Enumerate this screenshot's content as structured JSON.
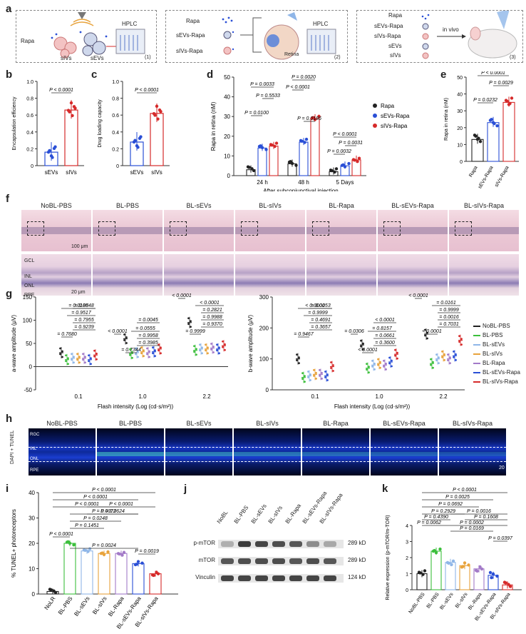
{
  "panels": {
    "a": "a",
    "b": "b",
    "c": "c",
    "d": "d",
    "e": "e",
    "f": "f",
    "g": "g",
    "h": "h",
    "i": "i",
    "j": "j",
    "k": "k"
  },
  "a": {
    "box1": {
      "rapa": "Rapa",
      "sivs": "sIVs",
      "sevs": "sEVs",
      "hplc": "HPLC",
      "num": "(1)"
    },
    "box2": {
      "rapa": "Rapa",
      "sevs_rapa": "sEVs-Rapa",
      "sivs_rapa": "sIVs-Rapa",
      "hplc": "HPLC",
      "retina": "Retina",
      "num": "(2)"
    },
    "box3": {
      "rapa": "Rapa",
      "sevs_rapa": "sEVs-Rapa",
      "sivs_rapa": "sIVs-Rapa",
      "sevs": "sEVs",
      "sivs": "sIVs",
      "invivo": "in vivo",
      "num": "(3)"
    }
  },
  "b": {
    "ylabel": "Encapsulation efficiency",
    "yticks": [
      "0",
      "0.2",
      "0.4",
      "0.6",
      "0.8",
      "1.0"
    ],
    "categories": [
      "sEVs",
      "sIVs"
    ],
    "pval": "P < 0.0001"
  },
  "c": {
    "ylabel": "Drug loading capacity",
    "yticks": [
      "0",
      "0.2",
      "0.4",
      "0.6",
      "0.8",
      "1.0"
    ],
    "categories": [
      "sEVs",
      "sIVs"
    ],
    "pval": "P < 0.0001"
  },
  "d": {
    "ylabel": "Rapa in retina (nM)",
    "xlabel": "After subconjunctival injection",
    "yticks": [
      "0",
      "10",
      "20",
      "30",
      "40",
      "50"
    ],
    "groups": [
      "24 h",
      "48 h",
      "5 Days"
    ],
    "legend": [
      "Rapa",
      "sEVs-Rapa",
      "sIVs-Rapa"
    ],
    "pvals": [
      "P = 0.0033",
      "P = 0.5533",
      "P = 0.0100",
      "P = 0.0020",
      "P < 0.0001",
      "P = 0.0186",
      "P < 0.0001",
      "P = 0.0031",
      "P = 0.0032"
    ]
  },
  "e": {
    "ylabel": "Rapa in retina (nM)",
    "yticks": [
      "0",
      "10",
      "20",
      "30",
      "40",
      "50"
    ],
    "categories": [
      "Rapa",
      "sEVs-Rapa",
      "sIVs-Rapa"
    ],
    "pvals": [
      "P < 0.0001",
      "P = 0.0029",
      "P = 0.0232"
    ]
  },
  "f": {
    "labels": [
      "NoBL-PBS",
      "BL-PBS",
      "BL-sEVs",
      "BL-sIVs",
      "BL-Rapa",
      "BL-sEVs-Rapa",
      "BL-sIVs-Rapa"
    ],
    "scale_top": "100 μm",
    "scale_bottom": "20 μm",
    "layers": [
      "GCL",
      "INL",
      "ONL",
      "RPE"
    ]
  },
  "g": {
    "left": {
      "ylabel": "a-wave amplitude (μV)",
      "xlabel": "Flash intensity (Log (cd·s/m²))",
      "yticks": [
        "-50",
        "0",
        "50",
        "100",
        "150"
      ],
      "xticks": [
        "0.1",
        "1.0",
        "2.2"
      ],
      "pvals": [
        "= 0.0185",
        "= 0.0848",
        "= 0.9517",
        "= 0.7955",
        "= 0.9239",
        "= 0.7680",
        "= 0.0045",
        "< 0.0001",
        "= 0.0555",
        "= 0.9958",
        "= 0.3985",
        "= 0.7344",
        "< 0.0001",
        "< 0.0001",
        "= 0.2821",
        "= 0.9988",
        "= 0.9370",
        "= 0.9999"
      ]
    },
    "right": {
      "ylabel": "b-wave amplitude (μV)",
      "xlabel": "Flash intensity (Log (cd·s/m²))",
      "yticks": [
        "0",
        "100",
        "200",
        "300"
      ],
      "xticks": [
        "0.1",
        "1.0",
        "2.2"
      ],
      "pvals": [
        "< 0.0001",
        "= 0.0053",
        "= 0.9999",
        "= 0.4691",
        "= 0.3657",
        "= 0.9467",
        "< 0.0001",
        "= 0.0306",
        "= 0.8157",
        "= 0.0661",
        "= 0.3600",
        "< 0.0001",
        "< 0.0001",
        "= 0.0161",
        "= 0.9999",
        "= 0.0016",
        "= 0.7031",
        "< 0.0001"
      ]
    },
    "legend": [
      "NoBL-PBS",
      "BL-PBS",
      "BL-sEVs",
      "BL-sIVs",
      "BL-Rapa",
      "BL-sEVs-Rapa",
      "BL-sIVs-Rapa"
    ],
    "legend_colors": [
      "#222222",
      "#3cbf3c",
      "#8fb6e8",
      "#e8a33c",
      "#a37ac8",
      "#2a4fd6",
      "#d62a2a"
    ]
  },
  "h": {
    "labels": [
      "NoBL-PBS",
      "BL-PBS",
      "BL-sEVs",
      "BL-sIVs",
      "BL-Rapa",
      "BL-sEVs-Rapa",
      "BL-sIVs-Rapa"
    ],
    "side": "DAPI + TUNEL",
    "layers": [
      "RGC",
      "INL",
      "ONL",
      "RPE"
    ],
    "scale": "20 μm"
  },
  "i": {
    "ylabel": "% TUNEL+ photoreceptors",
    "yticks": [
      "0",
      "10",
      "20",
      "30",
      "40"
    ],
    "categories": [
      "NoLR",
      "BL-PBS",
      "BL-sEVs",
      "BL-sIVs",
      "BL-Rapa",
      "BL-sEVs-Rapa",
      "BL-sIVs-Rapa"
    ],
    "pvals": [
      "P < 0.0001",
      "P < 0.0001",
      "P < 0.0001",
      "P = 0.0072",
      "P = 0.0248",
      "P = 0.1451",
      "P < 0.0001",
      "P = 0.0624",
      "P < 0.0001",
      "P = 0.0024",
      "P = 0.0019"
    ]
  },
  "j": {
    "lanes": [
      "NoBL",
      "BL-PBS",
      "BL-sEVs",
      "BL-sIVs",
      "BL-Rapa",
      "BL-sEVs-Rapa",
      "BL-sIVs-Rapa"
    ],
    "rows": [
      "p-mTOR",
      "mTOR",
      "Vinculin"
    ],
    "sizes": [
      "289 kD",
      "289 kD",
      "124 kD"
    ]
  },
  "k": {
    "ylabel": "Relative expression (p-mTOR/m-TOR)",
    "yticks": [
      "0",
      "1",
      "2",
      "3",
      "4"
    ],
    "categories": [
      "NoBL-PBS",
      "BL-PBS",
      "BL-sEVs",
      "BL-sIVs",
      "BL-Rapa",
      "BL-sEVs-Rapa",
      "BL-sIVs-Rapa"
    ],
    "pvals": [
      "P < 0.0001",
      "P = 0.0025",
      "P = 0.0692",
      "P = 0.2929",
      "P = 0.0016",
      "P = 0.4390",
      "P = 0.1608",
      "P = 0.0062",
      "P = 0.0002",
      "P = 0.0169",
      "P = 0.0397"
    ]
  },
  "chart_data": [
    {
      "type": "bar",
      "id": "b",
      "title": "",
      "ylabel": "Encapsulation efficiency",
      "categories": [
        "sEVs",
        "sIVs"
      ],
      "values": [
        0.16,
        0.66
      ],
      "ylim": [
        0,
        1.0
      ],
      "colors": [
        "#2a4fd6",
        "#d62a2a"
      ]
    },
    {
      "type": "bar",
      "id": "c",
      "title": "",
      "ylabel": "Drug loading capacity",
      "categories": [
        "sEVs",
        "sIVs"
      ],
      "values": [
        0.28,
        0.62
      ],
      "ylim": [
        0,
        1.0
      ],
      "colors": [
        "#2a4fd6",
        "#d62a2a"
      ]
    },
    {
      "type": "bar",
      "id": "d",
      "ylabel": "Rapa in retina (nM)",
      "xlabel": "After subconjunctival injection",
      "categories": [
        "24 h",
        "48 h",
        "5 Days"
      ],
      "ylim": [
        0,
        50
      ],
      "series": [
        {
          "name": "Rapa",
          "values": [
            3,
            6,
            2
          ]
        },
        {
          "name": "sEVs-Rapa",
          "values": [
            14,
            17,
            5
          ]
        },
        {
          "name": "sIVs-Rapa",
          "values": [
            15,
            29,
            8
          ]
        }
      ]
    },
    {
      "type": "bar",
      "id": "e",
      "ylabel": "Rapa in retina (nM)",
      "categories": [
        "Rapa",
        "sEVs-Rapa",
        "sIVs-Rapa"
      ],
      "values": [
        13,
        23,
        35
      ],
      "ylim": [
        0,
        50
      ]
    },
    {
      "type": "bar",
      "id": "i",
      "ylabel": "% TUNEL+ photoreceptors",
      "categories": [
        "NoLR",
        "BL-PBS",
        "BL-sEVs",
        "BL-sIVs",
        "BL-Rapa",
        "BL-sEVs-Rapa",
        "BL-sIVs-Rapa"
      ],
      "values": [
        1,
        20,
        17,
        16,
        16,
        12,
        8
      ],
      "ylim": [
        0,
        40
      ]
    },
    {
      "type": "bar",
      "id": "k",
      "ylabel": "Relative expression (p-mTOR/m-TOR)",
      "categories": [
        "NoBL-PBS",
        "BL-PBS",
        "BL-sEVs",
        "BL-sIVs",
        "BL-Rapa",
        "BL-sEVs-Rapa",
        "BL-sIVs-Rapa"
      ],
      "values": [
        1,
        2.4,
        1.7,
        1.5,
        1.3,
        0.9,
        0.3
      ],
      "ylim": [
        0,
        4
      ]
    }
  ]
}
